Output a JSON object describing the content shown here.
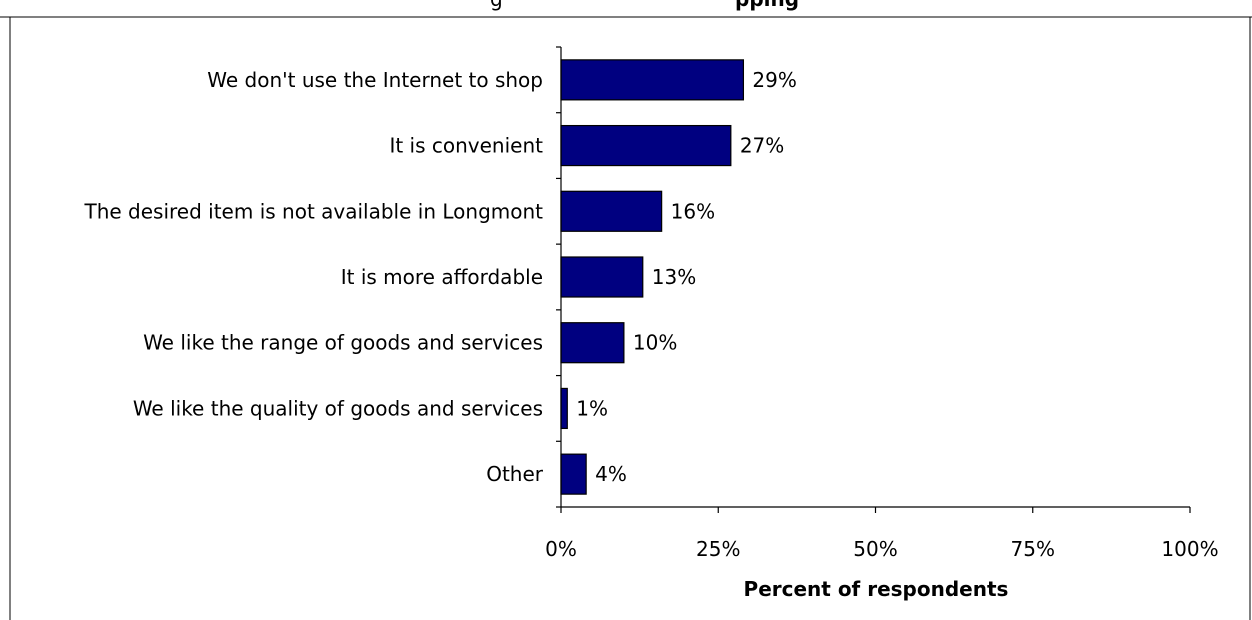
{
  "chart_data": {
    "type": "bar",
    "orientation": "horizontal",
    "title_parts": [
      "g",
      "pping"
    ],
    "categories": [
      "We don't use the Internet to shop",
      "It is convenient",
      "The desired item is not available in Longmont",
      "It is more affordable",
      "We like the range of goods and services",
      "We like the quality of goods and services",
      "Other"
    ],
    "values": [
      29,
      27,
      16,
      13,
      10,
      1,
      4
    ],
    "value_labels": [
      "29%",
      "27%",
      "16%",
      "13%",
      "10%",
      "1%",
      "4%"
    ],
    "xlabel": "Percent of respondents",
    "xlim": [
      0,
      100
    ],
    "xticks": [
      0,
      25,
      50,
      75,
      100
    ],
    "xtick_labels": [
      "0%",
      "25%",
      "50%",
      "75%",
      "100%"
    ],
    "bar_color": "#000080",
    "grid": false,
    "legend": "none"
  }
}
